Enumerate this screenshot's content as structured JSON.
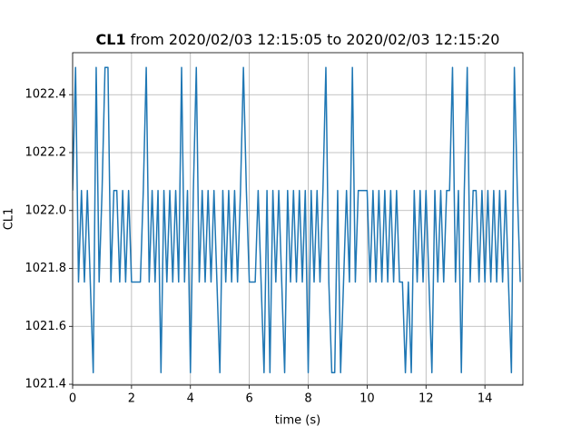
{
  "chart_data": {
    "type": "line",
    "title": {
      "bold": "CL1",
      "text": "from 2020/02/03 12:15:05 to 2020/02/03 12:15:20"
    },
    "xlabel": "time (s)",
    "ylabel": "CL1",
    "xlim": [
      0,
      15.29
    ],
    "ylim": [
      1021.397,
      1022.545
    ],
    "xticks": [
      0,
      2,
      4,
      6,
      8,
      10,
      12,
      14
    ],
    "yticks": [
      1021.4,
      1021.6,
      1021.8,
      {
        "value": 1022,
        "label": "1022.0"
      },
      1022.2,
      1022.4
    ],
    "grid": true,
    "x": [
      0,
      0.1,
      0.2,
      0.3,
      0.4,
      0.5,
      0.6,
      0.7,
      0.8,
      0.9,
      1,
      1.1,
      1.2,
      1.3,
      1.4,
      1.5,
      1.6,
      1.7,
      1.8,
      1.9,
      2,
      2.1,
      2.2,
      2.3,
      2.4,
      2.5,
      2.6,
      2.7,
      2.8,
      2.9,
      3,
      3.1,
      3.2,
      3.3,
      3.4,
      3.5,
      3.6,
      3.7,
      3.8,
      3.9,
      4,
      4.1,
      4.2,
      4.3,
      4.4,
      4.5,
      4.6,
      4.7,
      4.8,
      4.9,
      5,
      5.1,
      5.2,
      5.3,
      5.4,
      5.5,
      5.6,
      5.7,
      5.8,
      5.9,
      6,
      6.1,
      6.2,
      6.3,
      6.4,
      6.5,
      6.6,
      6.7,
      6.8,
      6.9,
      7,
      7.1,
      7.2,
      7.3,
      7.4,
      7.5,
      7.6,
      7.7,
      7.8,
      7.9,
      8,
      8.1,
      8.2,
      8.3,
      8.4,
      8.5,
      8.6,
      8.7,
      8.8,
      8.9,
      9,
      9.1,
      9.2,
      9.3,
      9.4,
      9.5,
      9.6,
      9.7,
      9.8,
      9.9,
      10,
      10.1,
      10.2,
      10.3,
      10.4,
      10.5,
      10.6,
      10.7,
      10.8,
      10.9,
      11,
      11.1,
      11.2,
      11.3,
      11.4,
      11.5,
      11.6,
      11.7,
      11.8,
      11.9,
      12,
      12.1,
      12.2,
      12.3,
      12.4,
      12.5,
      12.6,
      12.7,
      12.8,
      12.9,
      13,
      13.1,
      13.2,
      13.3,
      13.4,
      13.5,
      13.6,
      13.7,
      13.8,
      13.9,
      14,
      14.1,
      14.2,
      14.3,
      14.4,
      14.5,
      14.6,
      14.7,
      14.8,
      14.9,
      15,
      15.1,
      15.2
    ],
    "series": [
      {
        "name": "CL1",
        "color": "#1f77b4",
        "values": [
          1022.069,
          1022.494,
          1021.753,
          1022.069,
          1021.753,
          1022.069,
          1021.753,
          1021.44,
          1022.494,
          1021.753,
          1022.069,
          1022.494,
          1022.494,
          1021.753,
          1022.069,
          1022.069,
          1021.753,
          1022.069,
          1021.753,
          1022.069,
          1021.753,
          1021.753,
          1021.753,
          1021.753,
          1022.069,
          1022.494,
          1021.753,
          1022.069,
          1021.753,
          1022.069,
          1021.44,
          1022.069,
          1021.753,
          1022.069,
          1021.753,
          1022.069,
          1021.753,
          1022.494,
          1021.753,
          1022.069,
          1021.44,
          1022.069,
          1022.494,
          1021.753,
          1022.069,
          1021.753,
          1022.069,
          1021.753,
          1022.069,
          1021.753,
          1021.44,
          1022.069,
          1021.753,
          1022.069,
          1021.753,
          1022.069,
          1021.753,
          1022.069,
          1022.494,
          1022.069,
          1021.753,
          1021.753,
          1021.753,
          1022.069,
          1021.753,
          1021.44,
          1022.069,
          1021.44,
          1022.069,
          1021.753,
          1022.069,
          1021.753,
          1021.44,
          1022.069,
          1021.753,
          1022.069,
          1021.753,
          1022.069,
          1021.753,
          1022.069,
          1021.44,
          1022.069,
          1021.753,
          1022.069,
          1021.753,
          1022.069,
          1022.494,
          1021.753,
          1021.44,
          1021.44,
          1022.069,
          1021.44,
          1021.753,
          1022.069,
          1021.753,
          1022.494,
          1021.753,
          1022.069,
          1022.069,
          1022.069,
          1022.069,
          1021.753,
          1022.069,
          1021.753,
          1022.069,
          1021.753,
          1022.069,
          1021.753,
          1022.069,
          1021.753,
          1022.069,
          1021.753,
          1021.753,
          1021.44,
          1021.753,
          1021.44,
          1022.069,
          1021.753,
          1022.069,
          1021.753,
          1022.069,
          1021.753,
          1021.44,
          1022.069,
          1021.753,
          1022.069,
          1021.753,
          1022.069,
          1022.069,
          1022.494,
          1021.753,
          1022.069,
          1021.44,
          1022.069,
          1022.494,
          1021.753,
          1022.069,
          1022.069,
          1021.753,
          1022.069,
          1021.753,
          1022.069,
          1021.753,
          1022.069,
          1021.753,
          1022.069,
          1021.753,
          1022.069,
          1021.753,
          1021.44,
          1022.494,
          1022.069,
          1021.753
        ]
      }
    ]
  }
}
